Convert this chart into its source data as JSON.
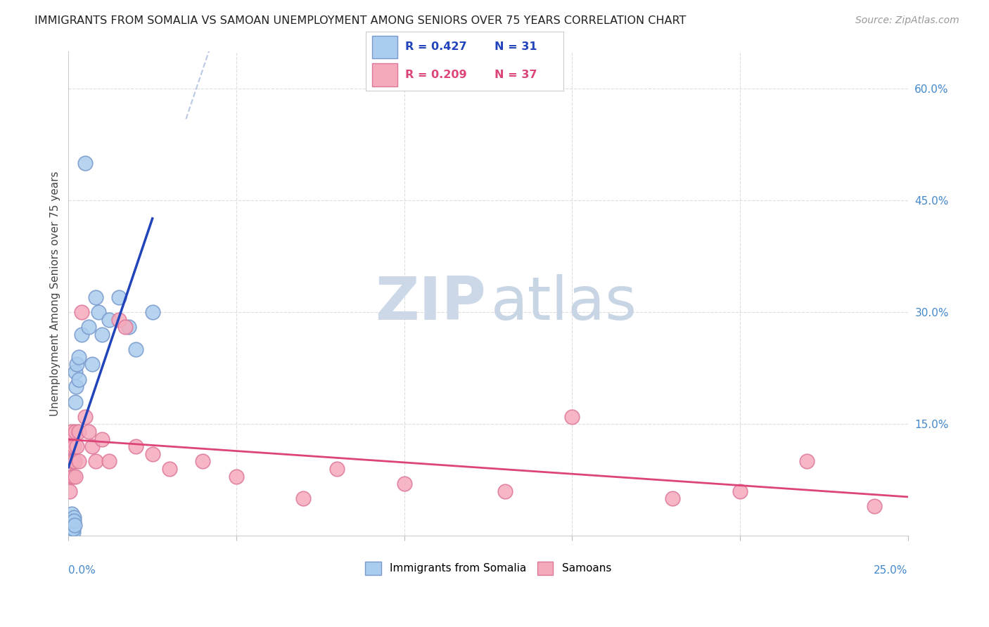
{
  "title": "IMMIGRANTS FROM SOMALIA VS SAMOAN UNEMPLOYMENT AMONG SENIORS OVER 75 YEARS CORRELATION CHART",
  "source": "Source: ZipAtlas.com",
  "ylabel": "Unemployment Among Seniors over 75 years",
  "xlim": [
    0.0,
    0.25
  ],
  "ylim": [
    0.0,
    0.65
  ],
  "right_yticks": [
    0.15,
    0.3,
    0.45,
    0.6
  ],
  "right_yticklabels": [
    "15.0%",
    "30.0%",
    "45.0%",
    "60.0%"
  ],
  "legend_r1": "R = 0.427",
  "legend_n1": "N = 31",
  "legend_r2": "R = 0.209",
  "legend_n2": "N = 37",
  "somalia_color": "#aaccee",
  "somalia_edge": "#7799cc",
  "samoa_color": "#f5aabb",
  "samoa_edge": "#dd7799",
  "trendline_somalia_color": "#2244bb",
  "trendline_samoa_color": "#dd4477",
  "dashed_line_color": "#aabbdd",
  "watermark_zip_color": "#ccd8e8",
  "watermark_atlas_color": "#c8d5e5",
  "somalia_x": [
    0.0003,
    0.0005,
    0.0006,
    0.0007,
    0.0008,
    0.001,
    0.001,
    0.0012,
    0.0013,
    0.0014,
    0.0015,
    0.0016,
    0.0018,
    0.002,
    0.002,
    0.0022,
    0.0025,
    0.003,
    0.003,
    0.004,
    0.005,
    0.006,
    0.007,
    0.008,
    0.009,
    0.01,
    0.012,
    0.015,
    0.018,
    0.02,
    0.025
  ],
  "somalia_y": [
    0.02,
    0.01,
    0.015,
    0.005,
    0.01,
    0.02,
    0.03,
    0.02,
    0.005,
    0.01,
    0.025,
    0.02,
    0.015,
    0.18,
    0.22,
    0.2,
    0.23,
    0.21,
    0.24,
    0.27,
    0.5,
    0.28,
    0.23,
    0.32,
    0.3,
    0.27,
    0.29,
    0.32,
    0.28,
    0.25,
    0.3
  ],
  "samoa_x": [
    0.0003,
    0.0005,
    0.0007,
    0.001,
    0.001,
    0.0012,
    0.0014,
    0.0016,
    0.0018,
    0.002,
    0.002,
    0.0025,
    0.003,
    0.003,
    0.004,
    0.005,
    0.006,
    0.007,
    0.008,
    0.01,
    0.012,
    0.015,
    0.017,
    0.02,
    0.025,
    0.03,
    0.04,
    0.05,
    0.07,
    0.08,
    0.1,
    0.13,
    0.15,
    0.18,
    0.2,
    0.22,
    0.24
  ],
  "samoa_y": [
    0.06,
    0.1,
    0.12,
    0.08,
    0.14,
    0.1,
    0.08,
    0.12,
    0.1,
    0.14,
    0.08,
    0.12,
    0.14,
    0.1,
    0.3,
    0.16,
    0.14,
    0.12,
    0.1,
    0.13,
    0.1,
    0.29,
    0.28,
    0.12,
    0.11,
    0.09,
    0.1,
    0.08,
    0.05,
    0.09,
    0.07,
    0.06,
    0.16,
    0.05,
    0.06,
    0.1,
    0.04
  ]
}
